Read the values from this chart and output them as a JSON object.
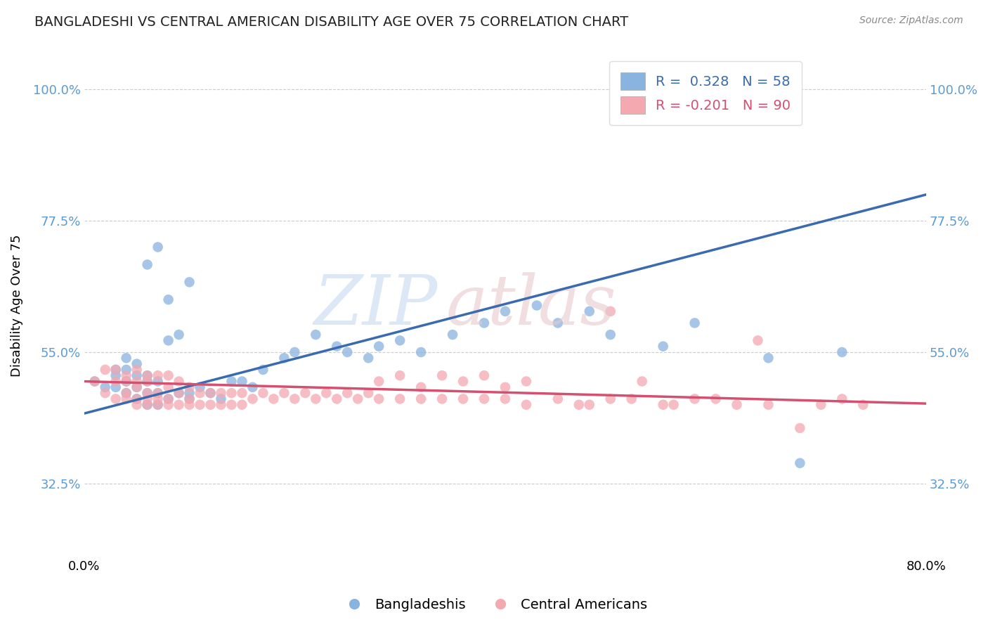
{
  "title": "BANGLADESHI VS CENTRAL AMERICAN DISABILITY AGE OVER 75 CORRELATION CHART",
  "source": "Source: ZipAtlas.com",
  "ylabel": "Disability Age Over 75",
  "blue_color": "#8ab4e0",
  "pink_color": "#f4a8b0",
  "blue_line_color": "#3a6aaf",
  "pink_line_color": "#d45070",
  "blue_R": 0.328,
  "blue_N": 58,
  "pink_R": -0.201,
  "pink_N": 90,
  "xmin": 0.0,
  "xmax": 0.8,
  "ymin": 0.2,
  "ymax": 1.06,
  "yticks": [
    0.325,
    0.55,
    0.775,
    1.0
  ],
  "ytick_labels": [
    "32.5%",
    "55.0%",
    "77.5%",
    "100.0%"
  ],
  "blue_scatter_x": [
    0.01,
    0.02,
    0.03,
    0.03,
    0.03,
    0.04,
    0.04,
    0.04,
    0.04,
    0.05,
    0.05,
    0.05,
    0.05,
    0.06,
    0.06,
    0.06,
    0.06,
    0.06,
    0.07,
    0.07,
    0.07,
    0.07,
    0.08,
    0.08,
    0.08,
    0.09,
    0.09,
    0.1,
    0.1,
    0.1,
    0.11,
    0.12,
    0.13,
    0.14,
    0.15,
    0.16,
    0.17,
    0.19,
    0.2,
    0.22,
    0.24,
    0.25,
    0.27,
    0.28,
    0.3,
    0.32,
    0.35,
    0.38,
    0.4,
    0.43,
    0.45,
    0.48,
    0.5,
    0.55,
    0.58,
    0.65,
    0.68,
    0.72
  ],
  "blue_scatter_y": [
    0.5,
    0.49,
    0.52,
    0.49,
    0.51,
    0.48,
    0.5,
    0.52,
    0.54,
    0.47,
    0.49,
    0.51,
    0.53,
    0.46,
    0.48,
    0.5,
    0.51,
    0.7,
    0.46,
    0.48,
    0.5,
    0.73,
    0.47,
    0.57,
    0.64,
    0.48,
    0.58,
    0.47,
    0.48,
    0.67,
    0.49,
    0.48,
    0.47,
    0.5,
    0.5,
    0.49,
    0.52,
    0.54,
    0.55,
    0.58,
    0.56,
    0.55,
    0.54,
    0.56,
    0.57,
    0.55,
    0.58,
    0.6,
    0.62,
    0.63,
    0.6,
    0.62,
    0.58,
    0.56,
    0.6,
    0.54,
    0.36,
    0.55
  ],
  "pink_scatter_x": [
    0.01,
    0.02,
    0.02,
    0.03,
    0.03,
    0.03,
    0.04,
    0.04,
    0.04,
    0.04,
    0.05,
    0.05,
    0.05,
    0.05,
    0.05,
    0.06,
    0.06,
    0.06,
    0.06,
    0.06,
    0.07,
    0.07,
    0.07,
    0.07,
    0.08,
    0.08,
    0.08,
    0.08,
    0.09,
    0.09,
    0.09,
    0.1,
    0.1,
    0.1,
    0.11,
    0.11,
    0.12,
    0.12,
    0.13,
    0.13,
    0.14,
    0.14,
    0.15,
    0.15,
    0.16,
    0.17,
    0.18,
    0.19,
    0.2,
    0.21,
    0.22,
    0.23,
    0.24,
    0.25,
    0.26,
    0.27,
    0.28,
    0.3,
    0.32,
    0.34,
    0.36,
    0.38,
    0.4,
    0.42,
    0.45,
    0.48,
    0.5,
    0.52,
    0.55,
    0.58,
    0.6,
    0.62,
    0.65,
    0.68,
    0.7,
    0.72,
    0.74,
    0.64,
    0.47,
    0.5,
    0.53,
    0.56,
    0.28,
    0.3,
    0.32,
    0.34,
    0.36,
    0.38,
    0.4,
    0.42
  ],
  "pink_scatter_y": [
    0.5,
    0.48,
    0.52,
    0.47,
    0.5,
    0.52,
    0.47,
    0.48,
    0.5,
    0.51,
    0.46,
    0.47,
    0.49,
    0.5,
    0.52,
    0.46,
    0.47,
    0.48,
    0.5,
    0.51,
    0.46,
    0.47,
    0.48,
    0.51,
    0.46,
    0.47,
    0.49,
    0.51,
    0.46,
    0.48,
    0.5,
    0.46,
    0.47,
    0.49,
    0.46,
    0.48,
    0.46,
    0.48,
    0.46,
    0.48,
    0.46,
    0.48,
    0.46,
    0.48,
    0.47,
    0.48,
    0.47,
    0.48,
    0.47,
    0.48,
    0.47,
    0.48,
    0.47,
    0.48,
    0.47,
    0.48,
    0.47,
    0.47,
    0.47,
    0.47,
    0.47,
    0.47,
    0.47,
    0.46,
    0.47,
    0.46,
    0.62,
    0.47,
    0.46,
    0.47,
    0.47,
    0.46,
    0.46,
    0.42,
    0.46,
    0.47,
    0.46,
    0.57,
    0.46,
    0.47,
    0.5,
    0.46,
    0.5,
    0.51,
    0.49,
    0.51,
    0.5,
    0.51,
    0.49,
    0.5
  ],
  "blue_line_x0": 0.0,
  "blue_line_x1": 0.8,
  "blue_line_y0": 0.445,
  "blue_line_y1": 0.82,
  "pink_line_x0": 0.0,
  "pink_line_x1": 0.8,
  "pink_line_y0": 0.5,
  "pink_line_y1": 0.462
}
